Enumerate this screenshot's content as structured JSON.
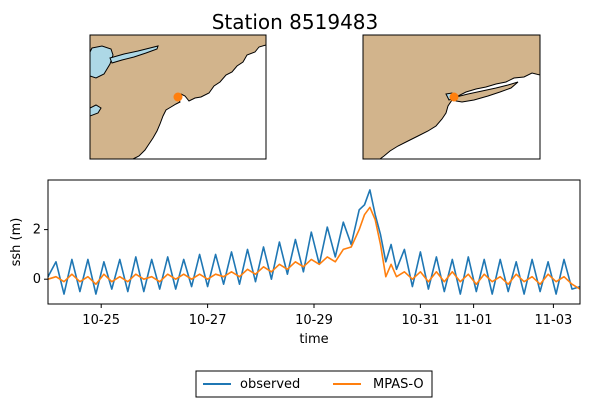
{
  "title": "Station 8519483",
  "colors": {
    "land": "#d2b48c",
    "water": "#add8e6",
    "station": "#ff7f0e",
    "observed": "#1f77b4",
    "model": "#ff7f0e"
  },
  "maps": [
    {
      "name": "regional-map",
      "description_free": true
    },
    {
      "name": "local-map",
      "description_free": true
    }
  ],
  "chart_data": {
    "type": "line",
    "xlabel": "time",
    "ylabel": "ssh (m)",
    "xlim": [
      24.0,
      34.0
    ],
    "ylim": [
      -1.0,
      4.0
    ],
    "x_ticks": [
      {
        "value": 25,
        "label": "10-25"
      },
      {
        "value": 27,
        "label": "10-27"
      },
      {
        "value": 29,
        "label": "10-29"
      },
      {
        "value": 31,
        "label": "10-31"
      },
      {
        "value": 32,
        "label": "11-01"
      },
      {
        "value": 33.5,
        "label": "11-03"
      }
    ],
    "y_ticks": [
      {
        "value": 0,
        "label": "0"
      },
      {
        "value": 2,
        "label": "2"
      }
    ],
    "legend": {
      "placement": "bottom-center",
      "columns": 2
    },
    "series": [
      {
        "name": "observed",
        "color": "#1f77b4",
        "x": [
          24.0,
          24.15,
          24.3,
          24.45,
          24.6,
          24.75,
          24.9,
          25.05,
          25.2,
          25.35,
          25.5,
          25.65,
          25.8,
          25.95,
          26.1,
          26.25,
          26.4,
          26.55,
          26.7,
          26.85,
          27.0,
          27.15,
          27.3,
          27.45,
          27.6,
          27.75,
          27.9,
          28.05,
          28.2,
          28.35,
          28.5,
          28.65,
          28.8,
          28.95,
          29.1,
          29.25,
          29.4,
          29.55,
          29.7,
          29.85,
          29.95,
          30.05,
          30.15,
          30.25,
          30.35,
          30.45,
          30.55,
          30.7,
          30.85,
          31.0,
          31.15,
          31.3,
          31.45,
          31.6,
          31.75,
          31.9,
          32.05,
          32.2,
          32.35,
          32.5,
          32.65,
          32.8,
          32.95,
          33.1,
          33.25,
          33.4,
          33.55,
          33.7,
          33.85,
          34.0
        ],
        "y": [
          0.1,
          0.7,
          -0.6,
          0.8,
          -0.5,
          0.8,
          -0.6,
          0.7,
          -0.4,
          0.8,
          -0.5,
          0.9,
          -0.5,
          0.8,
          -0.4,
          0.9,
          -0.4,
          0.8,
          -0.3,
          1.0,
          -0.3,
          1.0,
          -0.2,
          1.1,
          -0.2,
          1.2,
          -0.1,
          1.3,
          0.0,
          1.5,
          0.2,
          1.6,
          0.3,
          1.9,
          0.6,
          2.1,
          0.9,
          2.3,
          1.4,
          2.8,
          3.0,
          3.6,
          2.6,
          1.8,
          0.7,
          1.4,
          0.4,
          1.2,
          -0.3,
          1.1,
          -0.4,
          0.9,
          -0.5,
          0.8,
          -0.6,
          0.9,
          -0.5,
          0.8,
          -0.6,
          0.8,
          -0.5,
          0.7,
          -0.6,
          0.8,
          -0.5,
          0.7,
          -0.6,
          0.8,
          -0.4,
          -0.3
        ]
      },
      {
        "name": "MPAS-O",
        "color": "#ff7f0e",
        "x": [
          24.0,
          24.15,
          24.3,
          24.45,
          24.6,
          24.75,
          24.9,
          25.05,
          25.2,
          25.35,
          25.5,
          25.65,
          25.8,
          25.95,
          26.1,
          26.25,
          26.4,
          26.55,
          26.7,
          26.85,
          27.0,
          27.15,
          27.3,
          27.45,
          27.6,
          27.75,
          27.9,
          28.05,
          28.2,
          28.35,
          28.5,
          28.65,
          28.8,
          28.95,
          29.1,
          29.25,
          29.4,
          29.55,
          29.7,
          29.85,
          29.95,
          30.05,
          30.15,
          30.25,
          30.35,
          30.45,
          30.55,
          30.7,
          30.85,
          31.0,
          31.15,
          31.3,
          31.45,
          31.6,
          31.75,
          31.9,
          32.05,
          32.2,
          32.35,
          32.5,
          32.65,
          32.8,
          32.95,
          33.1,
          33.25,
          33.4,
          33.55,
          33.7,
          33.85,
          34.0
        ],
        "y": [
          0.0,
          0.1,
          -0.1,
          0.2,
          -0.1,
          0.1,
          -0.2,
          0.2,
          -0.1,
          0.1,
          -0.1,
          0.2,
          0.0,
          0.1,
          -0.1,
          0.2,
          0.0,
          0.2,
          0.0,
          0.2,
          0.0,
          0.2,
          0.1,
          0.3,
          0.1,
          0.4,
          0.2,
          0.5,
          0.3,
          0.6,
          0.4,
          0.7,
          0.5,
          0.8,
          0.6,
          0.9,
          0.7,
          1.2,
          1.3,
          2.0,
          2.6,
          2.9,
          2.4,
          1.4,
          0.1,
          0.6,
          0.1,
          0.3,
          0.0,
          0.3,
          -0.1,
          0.3,
          -0.1,
          0.3,
          -0.1,
          0.2,
          -0.2,
          0.2,
          -0.1,
          0.1,
          -0.2,
          0.2,
          -0.1,
          0.1,
          -0.2,
          0.2,
          -0.1,
          0.1,
          -0.2,
          -0.4
        ]
      }
    ]
  }
}
